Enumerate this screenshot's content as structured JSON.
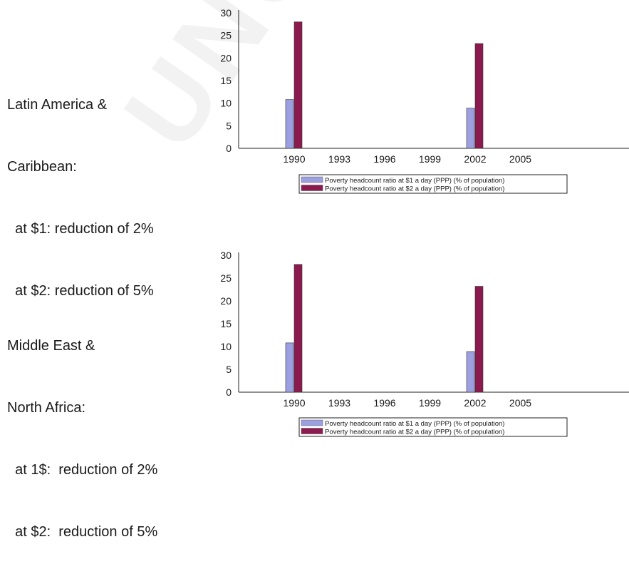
{
  "panels": [
    {
      "side_lines": [
        "Latin America &",
        "Caribbean:",
        "  at $1: reduction of 2%",
        "  at $2: reduction of 5%"
      ]
    },
    {
      "side_lines": [
        "Middle East &",
        "North Africa:",
        "  at 1$:  reduction of 2%",
        "  at $2:  reduction of 5%"
      ]
    }
  ],
  "colors": {
    "series1": "#9c9fe0",
    "series2": "#8b1a4e"
  },
  "watermark": "UNCORRECTED",
  "chart_data": [
    {
      "type": "bar",
      "categories": [
        "1990",
        "1993",
        "1996",
        "1999",
        "2002",
        "2005"
      ],
      "series": [
        {
          "name": "Poverty headcount ratio at $1 a day (PPP) (% of population)",
          "values": [
            10.8,
            null,
            null,
            null,
            8.9,
            null
          ]
        },
        {
          "name": "Poverty headcount ratio at $2 a day (PPP) (% of population)",
          "values": [
            28.0,
            null,
            null,
            null,
            23.2,
            null
          ]
        }
      ],
      "ylim": [
        0,
        30
      ],
      "yticks": [
        0,
        5,
        10,
        15,
        20,
        25,
        30
      ],
      "legend": "bottom",
      "grid": false
    },
    {
      "type": "bar",
      "categories": [
        "1990",
        "1993",
        "1996",
        "1999",
        "2002",
        "2005"
      ],
      "series": [
        {
          "name": "Poverty headcount ratio at $1 a day (PPP) (% of population)",
          "values": [
            10.8,
            null,
            null,
            null,
            8.9,
            null
          ]
        },
        {
          "name": "Poverty headcount ratio at $2 a day (PPP) (% of population)",
          "values": [
            28.0,
            null,
            null,
            null,
            23.2,
            null
          ]
        }
      ],
      "ylim": [
        0,
        30
      ],
      "yticks": [
        0,
        5,
        10,
        15,
        20,
        25,
        30
      ],
      "legend": "bottom",
      "grid": false
    }
  ]
}
